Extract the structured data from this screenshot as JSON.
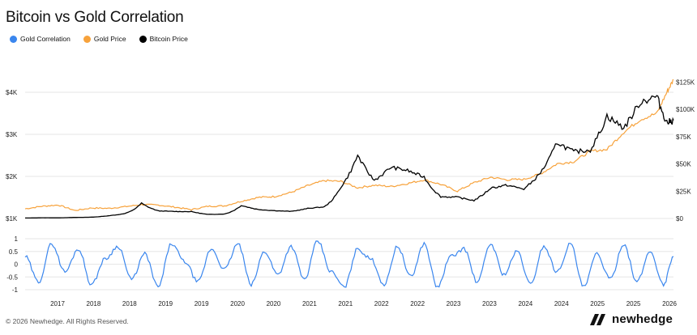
{
  "title": "Bitcoin vs Gold Correlation",
  "legend": [
    {
      "label": "Gold Correlation",
      "color": "#3a86ee"
    },
    {
      "label": "Gold Price",
      "color": "#f7a23b"
    },
    {
      "label": "Bitcoin Price",
      "color": "#000000"
    }
  ],
  "footer": "© 2026 Newhedge. All Rights Reserved.",
  "brand": "newhedge",
  "colors": {
    "correlation": "#3a86ee",
    "gold": "#f7a23b",
    "bitcoin": "#000000",
    "grid": "#e6e6e6"
  },
  "chart_data": [
    {
      "type": "line",
      "title": "Bitcoin vs Gold Correlation",
      "xlim": [
        2016.25,
        2026.0
      ],
      "x_tick_labels": [
        "2017",
        "2018",
        "2018",
        "2019",
        "2019",
        "2020",
        "2020",
        "2021",
        "2021",
        "2022",
        "2022",
        "2023",
        "2023",
        "2024",
        "2024",
        "2025",
        "2025",
        "2026"
      ],
      "y_left": {
        "range": [
          1000,
          4500
        ],
        "ticks": [
          1000,
          2000,
          3000,
          4000
        ],
        "tick_labels": [
          "$1K",
          "$2K",
          "$3K",
          "$4K"
        ]
      },
      "y_right": {
        "range": [
          0,
          135000
        ],
        "ticks": [
          0,
          25000,
          50000,
          75000,
          100000,
          125000
        ],
        "tick_labels": [
          "$0",
          "$25K",
          "$50K",
          "$75K",
          "$100K",
          "$125K"
        ]
      },
      "grid": true,
      "legend_position": "top-left",
      "series": [
        {
          "name": "Gold Price",
          "axis": "left",
          "x": [
            2016.25,
            2016.5,
            2016.75,
            2017.0,
            2017.25,
            2017.5,
            2017.75,
            2018.0,
            2018.25,
            2018.5,
            2018.75,
            2019.0,
            2019.25,
            2019.5,
            2019.75,
            2020.0,
            2020.25,
            2020.5,
            2020.75,
            2021.0,
            2021.25,
            2021.5,
            2021.75,
            2022.0,
            2022.25,
            2022.5,
            2022.75,
            2023.0,
            2023.25,
            2023.5,
            2023.75,
            2024.0,
            2024.25,
            2024.5,
            2024.75,
            2025.0,
            2025.25,
            2025.5,
            2025.75,
            2025.9,
            2026.0
          ],
          "values": [
            1230,
            1290,
            1320,
            1190,
            1250,
            1240,
            1280,
            1330,
            1320,
            1270,
            1210,
            1290,
            1300,
            1410,
            1500,
            1520,
            1620,
            1780,
            1900,
            1880,
            1730,
            1790,
            1760,
            1830,
            1920,
            1810,
            1650,
            1850,
            1980,
            1920,
            1930,
            2060,
            2300,
            2350,
            2600,
            2640,
            3050,
            3350,
            3500,
            4000,
            4300
          ]
        },
        {
          "name": "Bitcoin Price",
          "axis": "right",
          "x": [
            2016.25,
            2016.5,
            2016.75,
            2017.0,
            2017.25,
            2017.5,
            2017.75,
            2018.0,
            2018.25,
            2018.5,
            2018.75,
            2019.0,
            2019.25,
            2019.5,
            2019.75,
            2020.0,
            2020.25,
            2020.5,
            2020.75,
            2021.0,
            2021.25,
            2021.5,
            2021.75,
            2022.0,
            2022.25,
            2022.5,
            2022.75,
            2023.0,
            2023.25,
            2023.5,
            2023.75,
            2024.0,
            2024.25,
            2024.5,
            2024.75,
            2025.0,
            2025.25,
            2025.5,
            2025.75,
            2025.9,
            2026.0
          ],
          "values": [
            420,
            650,
            610,
            960,
            1200,
            2500,
            4500,
            14000,
            7000,
            6400,
            6300,
            3700,
            4100,
            12000,
            8300,
            7200,
            6500,
            9200,
            10700,
            29000,
            58000,
            35000,
            47000,
            44000,
            38000,
            20000,
            19500,
            16500,
            28000,
            30500,
            27000,
            42000,
            70000,
            61000,
            63000,
            94000,
            83000,
            107000,
            112000,
            88000,
            90000
          ]
        }
      ]
    },
    {
      "type": "line",
      "title": "",
      "y_range": [
        -1,
        1
      ],
      "y_ticks": [
        -1,
        -0.5,
        0,
        0.5,
        1
      ],
      "y_tick_labels": [
        "-1",
        "-0.5",
        "0",
        "0.5",
        "1"
      ],
      "series": [
        {
          "name": "Gold Correlation",
          "x": [
            2016.25,
            2016.45,
            2016.65,
            2016.85,
            2017.05,
            2017.25,
            2017.45,
            2017.65,
            2017.85,
            2018.05,
            2018.25,
            2018.45,
            2018.65,
            2018.85,
            2019.05,
            2019.25,
            2019.45,
            2019.65,
            2019.85,
            2020.05,
            2020.25,
            2020.45,
            2020.65,
            2020.85,
            2021.05,
            2021.25,
            2021.45,
            2021.65,
            2021.85,
            2022.05,
            2022.25,
            2022.45,
            2022.65,
            2022.85,
            2023.05,
            2023.25,
            2023.45,
            2023.65,
            2023.85,
            2024.05,
            2024.25,
            2024.45,
            2024.65,
            2024.85,
            2025.05,
            2025.25,
            2025.45,
            2025.65,
            2025.85,
            2026.0
          ],
          "values": [
            0.3,
            -0.7,
            0.8,
            -0.3,
            0.6,
            -0.8,
            0.2,
            0.7,
            -0.6,
            0.4,
            -0.9,
            0.8,
            0.1,
            -0.7,
            0.6,
            -0.2,
            0.8,
            -0.8,
            0.5,
            -0.4,
            0.7,
            -0.6,
            0.9,
            -0.3,
            -0.9,
            0.6,
            0.2,
            -0.8,
            0.7,
            -0.5,
            0.8,
            -0.9,
            0.3,
            0.6,
            -0.7,
            0.8,
            -0.4,
            0.5,
            -0.8,
            0.7,
            -0.3,
            0.8,
            -0.9,
            0.4,
            -0.6,
            0.8,
            -0.7,
            0.5,
            -0.8,
            0.3
          ]
        }
      ]
    }
  ]
}
